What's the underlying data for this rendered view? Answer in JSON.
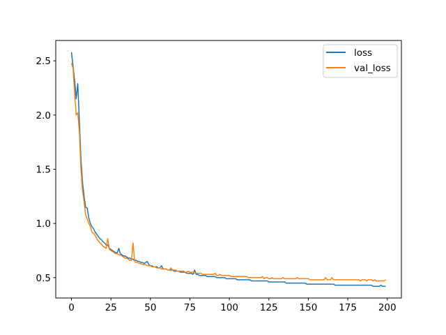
{
  "chart_data": {
    "type": "line",
    "title": "",
    "xlabel": "",
    "ylabel": "",
    "xlim": [
      -9.95,
      208.95
    ],
    "ylim": [
      0.312,
      2.688
    ],
    "xticks": [
      0,
      25,
      50,
      75,
      100,
      125,
      150,
      175,
      200
    ],
    "yticks": [
      0.5,
      1.0,
      1.5,
      2.0,
      2.5
    ],
    "xtick_labels": [
      "0",
      "25",
      "50",
      "75",
      "100",
      "125",
      "150",
      "175",
      "200"
    ],
    "ytick_labels": [
      "0.5",
      "1.0",
      "1.5",
      "2.0",
      "2.5"
    ],
    "grid": false,
    "legend": "upper-right",
    "series": [
      {
        "name": "loss",
        "color": "#1f77b4",
        "values": [
          2.58,
          2.45,
          2.32,
          2.15,
          2.29,
          1.95,
          1.6,
          1.38,
          1.25,
          1.15,
          1.14,
          1.05,
          1.0,
          0.97,
          0.95,
          0.92,
          0.9,
          0.88,
          0.86,
          0.85,
          0.83,
          0.82,
          0.8,
          0.8,
          0.77,
          0.76,
          0.75,
          0.74,
          0.73,
          0.73,
          0.77,
          0.72,
          0.71,
          0.7,
          0.7,
          0.69,
          0.68,
          0.68,
          0.67,
          0.67,
          0.66,
          0.66,
          0.65,
          0.65,
          0.64,
          0.64,
          0.63,
          0.64,
          0.65,
          0.62,
          0.61,
          0.61,
          0.6,
          0.6,
          0.6,
          0.59,
          0.59,
          0.61,
          0.58,
          0.58,
          0.58,
          0.57,
          0.57,
          0.57,
          0.57,
          0.56,
          0.56,
          0.56,
          0.56,
          0.55,
          0.55,
          0.55,
          0.55,
          0.54,
          0.54,
          0.54,
          0.54,
          0.53,
          0.57,
          0.53,
          0.53,
          0.52,
          0.52,
          0.52,
          0.52,
          0.52,
          0.51,
          0.51,
          0.51,
          0.51,
          0.51,
          0.51,
          0.5,
          0.5,
          0.5,
          0.5,
          0.5,
          0.5,
          0.49,
          0.49,
          0.49,
          0.49,
          0.49,
          0.49,
          0.49,
          0.48,
          0.48,
          0.48,
          0.48,
          0.48,
          0.48,
          0.48,
          0.48,
          0.48,
          0.47,
          0.47,
          0.47,
          0.47,
          0.47,
          0.47,
          0.47,
          0.47,
          0.47,
          0.47,
          0.47,
          0.46,
          0.46,
          0.46,
          0.46,
          0.46,
          0.46,
          0.46,
          0.46,
          0.46,
          0.46,
          0.46,
          0.45,
          0.45,
          0.45,
          0.45,
          0.45,
          0.45,
          0.45,
          0.45,
          0.45,
          0.45,
          0.45,
          0.45,
          0.45,
          0.44,
          0.44,
          0.44,
          0.44,
          0.44,
          0.44,
          0.44,
          0.44,
          0.44,
          0.44,
          0.44,
          0.44,
          0.44,
          0.44,
          0.44,
          0.44,
          0.44,
          0.44,
          0.43,
          0.43,
          0.43,
          0.43,
          0.43,
          0.43,
          0.43,
          0.43,
          0.43,
          0.43,
          0.43,
          0.43,
          0.43,
          0.43,
          0.43,
          0.43,
          0.43,
          0.43,
          0.43,
          0.43,
          0.43,
          0.43,
          0.43,
          0.43,
          0.42,
          0.42,
          0.42,
          0.42,
          0.42,
          0.43,
          0.42,
          0.42,
          0.42
        ]
      },
      {
        "name": "val_loss",
        "color": "#ff7f0e",
        "values": [
          2.48,
          2.43,
          2.2,
          2.0,
          2.02,
          1.85,
          1.5,
          1.3,
          1.2,
          1.08,
          1.04,
          1.0,
          0.97,
          0.92,
          0.91,
          0.89,
          0.86,
          0.84,
          0.82,
          0.81,
          0.79,
          0.78,
          0.77,
          0.86,
          0.76,
          0.75,
          0.74,
          0.73,
          0.72,
          0.72,
          0.71,
          0.71,
          0.7,
          0.69,
          0.68,
          0.68,
          0.67,
          0.66,
          0.66,
          0.82,
          0.65,
          0.64,
          0.64,
          0.63,
          0.63,
          0.62,
          0.62,
          0.62,
          0.61,
          0.61,
          0.61,
          0.6,
          0.6,
          0.6,
          0.59,
          0.59,
          0.59,
          0.58,
          0.58,
          0.58,
          0.58,
          0.57,
          0.57,
          0.59,
          0.57,
          0.57,
          0.57,
          0.56,
          0.56,
          0.56,
          0.56,
          0.56,
          0.55,
          0.55,
          0.56,
          0.55,
          0.55,
          0.55,
          0.54,
          0.54,
          0.54,
          0.54,
          0.54,
          0.53,
          0.53,
          0.53,
          0.53,
          0.53,
          0.53,
          0.53,
          0.53,
          0.54,
          0.52,
          0.52,
          0.53,
          0.52,
          0.52,
          0.52,
          0.52,
          0.52,
          0.52,
          0.51,
          0.51,
          0.51,
          0.51,
          0.51,
          0.51,
          0.51,
          0.51,
          0.51,
          0.51,
          0.51,
          0.5,
          0.5,
          0.5,
          0.5,
          0.5,
          0.5,
          0.5,
          0.5,
          0.5,
          0.51,
          0.49,
          0.5,
          0.5,
          0.49,
          0.49,
          0.5,
          0.49,
          0.49,
          0.49,
          0.49,
          0.49,
          0.49,
          0.5,
          0.49,
          0.49,
          0.49,
          0.49,
          0.49,
          0.49,
          0.49,
          0.49,
          0.5,
          0.49,
          0.49,
          0.49,
          0.49,
          0.49,
          0.49,
          0.49,
          0.48,
          0.48,
          0.48,
          0.48,
          0.48,
          0.48,
          0.48,
          0.48,
          0.48,
          0.48,
          0.5,
          0.48,
          0.48,
          0.48,
          0.5,
          0.48,
          0.48,
          0.48,
          0.48,
          0.48,
          0.48,
          0.48,
          0.48,
          0.48,
          0.48,
          0.48,
          0.48,
          0.48,
          0.48,
          0.48,
          0.48,
          0.48,
          0.47,
          0.48,
          0.48,
          0.48,
          0.47,
          0.48,
          0.48,
          0.48,
          0.47,
          0.48,
          0.47,
          0.47,
          0.47,
          0.47,
          0.47,
          0.47,
          0.48
        ]
      }
    ]
  }
}
